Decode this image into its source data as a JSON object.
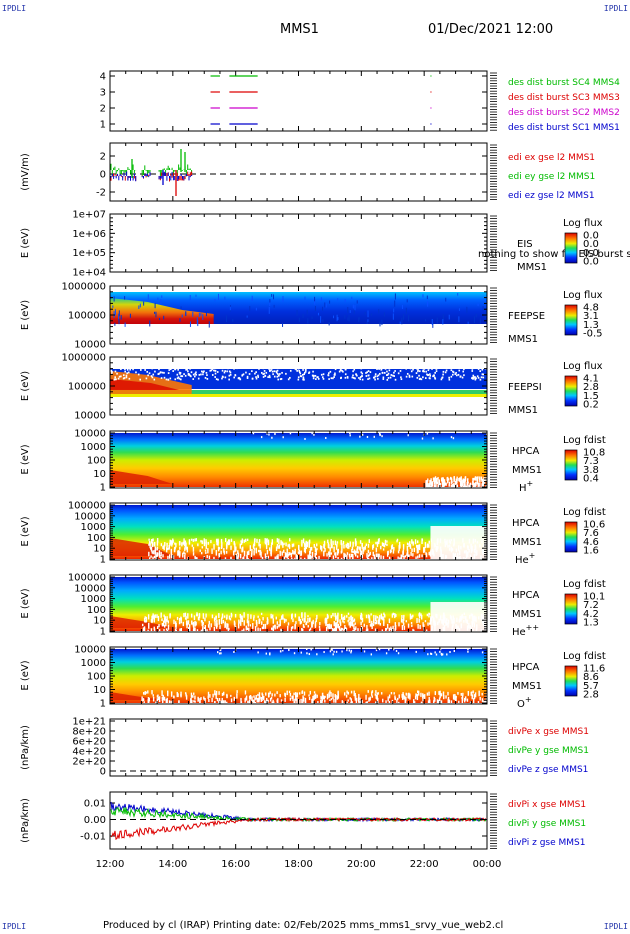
{
  "corners": {
    "tl": "IPDLI",
    "tr": "IPDLI",
    "bl": "IPDLI",
    "br": "IPDLI"
  },
  "header": {
    "title": "MMS1",
    "datetime": "01/Dec/2021 12:00"
  },
  "footer": {
    "text": "Produced by cl (IRAP)   Printing date: 02/Feb/2025   mms_mms1_srvy_vue_web2.cl"
  },
  "colors": {
    "red": "#dd0000",
    "green": "#00bb00",
    "blue": "#0000cc",
    "magenta": "#cc00cc",
    "label_blue": "#1a1aa0"
  },
  "chart_data": [
    {
      "type": "scatter",
      "panel": "burst",
      "y_ticks": [
        "4",
        "3",
        "2",
        "1"
      ],
      "ylim": [
        0.5,
        4.5
      ],
      "x_ticks": [
        "12:00",
        "14:00",
        "16:00",
        "18:00",
        "20:00",
        "22:00",
        "00:00"
      ],
      "legend": [
        {
          "text": "des dist burst SC1 MMS1",
          "color": "#0000cc"
        },
        {
          "text": "des dist burst SC2 MMS2",
          "color": "#cc00cc"
        },
        {
          "text": "des dist burst SC3 MMS3",
          "color": "#dd0000"
        },
        {
          "text": "des dist burst SC4 MMS4",
          "color": "#00bb00"
        }
      ],
      "series": [
        {
          "level": 4,
          "color": "#00bb00",
          "segments": [
            [
              15.2,
              15.5
            ],
            [
              15.8,
              16.7
            ],
            [
              22.2,
              22.22
            ]
          ]
        },
        {
          "level": 3,
          "color": "#dd0000",
          "segments": [
            [
              15.2,
              15.5
            ],
            [
              15.8,
              16.7
            ],
            [
              22.2,
              22.22
            ]
          ]
        },
        {
          "level": 2,
          "color": "#cc00cc",
          "segments": [
            [
              15.2,
              15.5
            ],
            [
              15.8,
              16.7
            ],
            [
              22.2,
              22.22
            ]
          ]
        },
        {
          "level": 1,
          "color": "#0000cc",
          "segments": [
            [
              15.2,
              15.5
            ],
            [
              15.8,
              16.7
            ],
            [
              22.2,
              22.22
            ]
          ]
        }
      ]
    },
    {
      "type": "line",
      "panel": "edi",
      "ylabel": "(mV/m)",
      "y_ticks": [
        "2",
        "0",
        "-2"
      ],
      "ylim": [
        -3,
        3
      ],
      "legend": [
        {
          "text": "edi ex gse l2 MMS1",
          "color": "#dd0000"
        },
        {
          "text": "edi ey gse l2 MMS1",
          "color": "#00bb00"
        },
        {
          "text": "edi ez gse l2 MMS1",
          "color": "#0000cc"
        }
      ],
      "active_range": [
        12.0,
        14.6
      ]
    },
    {
      "type": "heatmap",
      "panel": "EIS",
      "ylabel": "E (eV)",
      "y_ticks": [
        "1e+07",
        "1e+06",
        "1e+05",
        "1e+04"
      ],
      "labels": [
        "EIS",
        "MMS1"
      ],
      "overlay": "nothing to show for EIS burst srvy electron to",
      "colorbar": {
        "title": "Log flux",
        "ticks": [
          "0.0",
          "0.0",
          "0.0",
          "0.0"
        ]
      }
    },
    {
      "type": "heatmap",
      "panel": "FEEPSE",
      "ylabel": "E (eV)",
      "y_ticks": [
        "1000000",
        "100000",
        "10000"
      ],
      "labels": [
        "FEEPSE",
        "MMS1"
      ],
      "colorbar": {
        "title": "Log flux",
        "ticks": [
          "4.8",
          "3.1",
          "1.3",
          "-0.5"
        ]
      }
    },
    {
      "type": "heatmap",
      "panel": "FEEPSI",
      "ylabel": "E (eV)",
      "y_ticks": [
        "1000000",
        "100000",
        "10000"
      ],
      "labels": [
        "FEEPSI",
        "MMS1"
      ],
      "colorbar": {
        "title": "Log flux",
        "ticks": [
          "4.1",
          "2.8",
          "1.5",
          "0.2"
        ]
      }
    },
    {
      "type": "heatmap",
      "panel": "HPCA H+",
      "ylabel": "E (eV)",
      "y_ticks": [
        "10000",
        "1000",
        "100",
        "10",
        "1"
      ],
      "labels": [
        "HPCA",
        "MMS1",
        "H+"
      ],
      "colorbar": {
        "title": "Log fdist",
        "ticks": [
          "10.8",
          "7.3",
          "3.8",
          "0.4"
        ]
      }
    },
    {
      "type": "heatmap",
      "panel": "HPCA He+",
      "ylabel": "E (eV)",
      "y_ticks": [
        "100000",
        "10000",
        "1000",
        "100",
        "10",
        "1"
      ],
      "labels": [
        "HPCA",
        "MMS1",
        "He+"
      ],
      "colorbar": {
        "title": "Log fdist",
        "ticks": [
          "10.6",
          "7.6",
          "4.6",
          "1.6"
        ]
      }
    },
    {
      "type": "heatmap",
      "panel": "HPCA He++",
      "ylabel": "E (eV)",
      "y_ticks": [
        "100000",
        "10000",
        "1000",
        "100",
        "10",
        "1"
      ],
      "labels": [
        "HPCA",
        "MMS1",
        "He++"
      ],
      "colorbar": {
        "title": "Log fdist",
        "ticks": [
          "10.1",
          "7.2",
          "4.2",
          "1.3"
        ]
      }
    },
    {
      "type": "heatmap",
      "panel": "HPCA O+",
      "ylabel": "E (eV)",
      "y_ticks": [
        "10000",
        "1000",
        "100",
        "10",
        "1"
      ],
      "labels": [
        "HPCA",
        "MMS1",
        "O+"
      ],
      "colorbar": {
        "title": "Log fdist",
        "ticks": [
          "11.6",
          "8.6",
          "5.7",
          "2.8"
        ]
      }
    },
    {
      "type": "line",
      "panel": "divPe",
      "ylabel": "(nPa/km)",
      "y_ticks": [
        "1e+21",
        "8e+20",
        "6e+20",
        "4e+20",
        "2e+20",
        "0"
      ],
      "legend": [
        {
          "text": "divPe x gse MMS1",
          "color": "#dd0000"
        },
        {
          "text": "divPe y gse MMS1",
          "color": "#00bb00"
        },
        {
          "text": "divPe z gse MMS1",
          "color": "#0000cc"
        }
      ]
    },
    {
      "type": "line",
      "panel": "divPi",
      "ylabel": "(nPa/km)",
      "y_ticks": [
        "0.01",
        "0.00",
        "-0.01"
      ],
      "ylim": [
        -0.017,
        0.017
      ],
      "legend": [
        {
          "text": "divPi x gse MMS1",
          "color": "#dd0000"
        },
        {
          "text": "divPi y gse MMS1",
          "color": "#00bb00"
        },
        {
          "text": "divPi z gse MMS1",
          "color": "#0000cc"
        }
      ]
    }
  ]
}
